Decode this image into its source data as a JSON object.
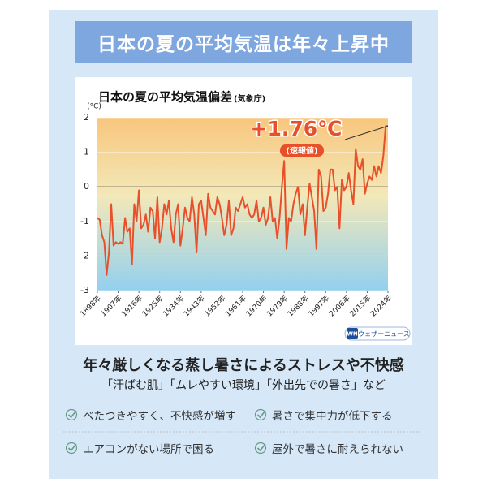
{
  "header": {
    "title": "日本の夏の平均気温は年々上昇中"
  },
  "chart_data": {
    "type": "line",
    "title": "日本の夏の平均気温偏差",
    "subtitle": "(気象庁)",
    "y_label": "(°C)",
    "annotation": "+1.76℃",
    "annotation_note": "(速報値)",
    "logo_mark": "WN",
    "logo_text": "ウェザーニュース",
    "color": "#e8502a",
    "xlim": [
      1898,
      2024
    ],
    "ylim": [
      -3,
      2
    ],
    "yticks": [
      -3,
      -2,
      -1,
      0,
      1,
      2
    ],
    "xticks": [
      {
        "value": 1898,
        "label": "1898年"
      },
      {
        "value": 1907,
        "label": "1907年"
      },
      {
        "value": 1916,
        "label": "1916年"
      },
      {
        "value": 1925,
        "label": "1925年"
      },
      {
        "value": 1934,
        "label": "1934年"
      },
      {
        "value": 1943,
        "label": "1943年"
      },
      {
        "value": 1952,
        "label": "1952年"
      },
      {
        "value": 1961,
        "label": "1961年"
      },
      {
        "value": 1970,
        "label": "1970年"
      },
      {
        "value": 1979,
        "label": "1979年"
      },
      {
        "value": 1988,
        "label": "1988年"
      },
      {
        "value": 1997,
        "label": "1997年"
      },
      {
        "value": 2006,
        "label": "2006年"
      },
      {
        "value": 2015,
        "label": "2015年"
      },
      {
        "value": 2024,
        "label": "2024年"
      }
    ],
    "x": [
      1898,
      1899,
      1900,
      1901,
      1902,
      1903,
      1904,
      1905,
      1906,
      1907,
      1908,
      1909,
      1910,
      1911,
      1912,
      1913,
      1914,
      1915,
      1916,
      1917,
      1918,
      1919,
      1920,
      1921,
      1922,
      1923,
      1924,
      1925,
      1926,
      1927,
      1928,
      1929,
      1930,
      1931,
      1932,
      1933,
      1934,
      1935,
      1936,
      1937,
      1938,
      1939,
      1940,
      1941,
      1942,
      1943,
      1944,
      1945,
      1946,
      1947,
      1948,
      1949,
      1950,
      1951,
      1952,
      1953,
      1954,
      1955,
      1956,
      1957,
      1958,
      1959,
      1960,
      1961,
      1962,
      1963,
      1964,
      1965,
      1966,
      1967,
      1968,
      1969,
      1970,
      1971,
      1972,
      1973,
      1974,
      1975,
      1976,
      1977,
      1978,
      1979,
      1980,
      1981,
      1982,
      1983,
      1984,
      1985,
      1986,
      1987,
      1988,
      1989,
      1990,
      1991,
      1992,
      1993,
      1994,
      1995,
      1996,
      1997,
      1998,
      1999,
      2000,
      2001,
      2002,
      2003,
      2004,
      2005,
      2006,
      2007,
      2008,
      2009,
      2010,
      2011,
      2012,
      2013,
      2014,
      2015,
      2016,
      2017,
      2018,
      2019,
      2020,
      2021,
      2022,
      2023,
      2024
    ],
    "values": [
      -0.9,
      -0.95,
      -1.4,
      -1.6,
      -2.55,
      -1.9,
      -0.5,
      -1.7,
      -1.6,
      -1.65,
      -1.6,
      -1.65,
      -0.9,
      -1.3,
      -1.2,
      -2.25,
      -0.5,
      -1.0,
      -0.1,
      -1.2,
      -1.1,
      -0.8,
      -1.3,
      -0.6,
      -0.7,
      -1.5,
      -0.3,
      -1.6,
      -1.2,
      -0.5,
      -0.8,
      -0.4,
      -1.2,
      -1.6,
      -0.8,
      -0.5,
      -1.7,
      -1.2,
      -0.6,
      -0.9,
      -1.0,
      -0.3,
      -0.8,
      -1.9,
      -0.5,
      -0.4,
      -0.9,
      -1.4,
      -0.2,
      -0.6,
      -0.7,
      -0.8,
      -0.3,
      -0.5,
      -0.9,
      -1.4,
      -1.1,
      -0.4,
      -1.4,
      -1.2,
      -0.6,
      -0.7,
      -0.5,
      -0.3,
      -0.6,
      -0.5,
      -0.8,
      -0.9,
      -0.8,
      -0.4,
      -1.0,
      -0.9,
      -0.6,
      -1.1,
      -0.9,
      -0.3,
      -1.0,
      -0.9,
      -1.5,
      -0.9,
      0.0,
      0.75,
      -1.8,
      -0.9,
      -1.0,
      -0.5,
      -0.2,
      0.0,
      -0.8,
      -0.5,
      -1.4,
      -0.6,
      0.1,
      -0.3,
      -0.7,
      -1.8,
      0.5,
      0.3,
      -0.7,
      -0.6,
      -0.2,
      0.5,
      0.5,
      -0.1,
      0.0,
      -1.2,
      0.2,
      -0.1,
      0.0,
      0.4,
      -0.1,
      -0.5,
      1.1,
      0.6,
      0.5,
      0.8,
      -0.2,
      0.1,
      0.3,
      0.2,
      0.6,
      0.3,
      0.6,
      0.4,
      0.9,
      1.76,
      1.76
    ]
  },
  "section": {
    "heading": "年々厳しくなる蒸し暑さによるストレスや不快感",
    "subline": "「汗ばむ肌」「ムレやすい環境」「外出先での暑さ」など"
  },
  "checklist": [
    "べたつきやすく、不快感が増す",
    "暑さで集中力が低下する",
    "エアコンがない場所で困る",
    "屋外で暑さに耐えられない"
  ]
}
